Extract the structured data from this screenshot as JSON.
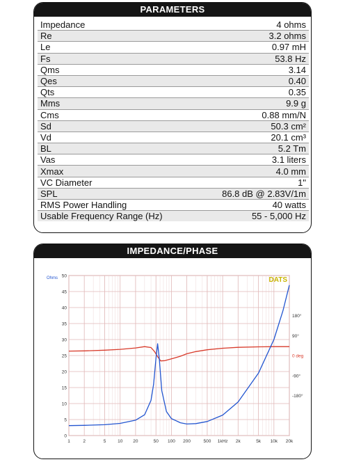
{
  "parameters": {
    "title": "PARAMETERS",
    "rows": [
      {
        "label": "Impedance",
        "value": "4 ohms"
      },
      {
        "label": "Re",
        "value": "3.2 ohms"
      },
      {
        "label": "Le",
        "value": "0.97 mH"
      },
      {
        "label": "Fs",
        "value": "53.8 Hz"
      },
      {
        "label": "Qms",
        "value": "3.14"
      },
      {
        "label": "Qes",
        "value": "0.40"
      },
      {
        "label": "Qts",
        "value": "0.35"
      },
      {
        "label": "Mms",
        "value": "9.9 g"
      },
      {
        "label": "Cms",
        "value": "0.88 mm/N"
      },
      {
        "label": "Sd",
        "value": "50.3 cm²"
      },
      {
        "label": "Vd",
        "value": "20.1 cm³"
      },
      {
        "label": "BL",
        "value": "5.2 Tm"
      },
      {
        "label": "Vas",
        "value": "3.1 liters"
      },
      {
        "label": "Xmax",
        "value": "4.0 mm"
      },
      {
        "label": "VC Diameter",
        "value": "1\""
      },
      {
        "label": "SPL",
        "value": "86.8 dB @ 2.83V/1m"
      },
      {
        "label": "RMS Power Handling",
        "value": "40 watts"
      },
      {
        "label": "Usable Frequency Range (Hz)",
        "value": "55 - 5,000 Hz"
      }
    ]
  },
  "impedance_panel": {
    "title": "IMPEDANCE/PHASE",
    "watermark": "DATS",
    "left_unit": "Ohms",
    "colors": {
      "impedance": "#2255d0",
      "phase": "#d83a2a",
      "grid": "#e0b8b8",
      "watermark": "#c8b400"
    }
  },
  "chart_data": {
    "type": "line",
    "xscale": "log",
    "xlim": [
      1,
      20000
    ],
    "x_tick_labels": [
      "1",
      "2",
      "5",
      "10",
      "20",
      "50",
      "100",
      "200",
      "500",
      "1kHz",
      "2k",
      "5k",
      "10k",
      "20k"
    ],
    "x_tick_values": [
      1,
      2,
      5,
      10,
      20,
      50,
      100,
      200,
      500,
      1000,
      2000,
      5000,
      10000,
      20000
    ],
    "ylim": [
      0,
      50
    ],
    "y_tick_labels": [
      "0",
      "5",
      "10",
      "15",
      "20",
      "25",
      "30",
      "35",
      "40",
      "45",
      "50"
    ],
    "y_tick_values": [
      0,
      5,
      10,
      15,
      20,
      25,
      30,
      35,
      40,
      45,
      50
    ],
    "y2lim": [
      -360,
      360
    ],
    "y2_tick_labels": [
      "180°",
      "90°",
      "0 deg",
      "-90°",
      "-180°"
    ],
    "y2_tick_values": [
      180,
      90,
      0,
      -90,
      -180
    ],
    "series": [
      {
        "axis": "left",
        "x": [
          1,
          2,
          5,
          10,
          20,
          30,
          40,
          45,
          50,
          53.8,
          58,
          65,
          80,
          100,
          150,
          200,
          300,
          500,
          1000,
          2000,
          5000,
          10000,
          15000,
          20000
        ],
        "y": [
          3.1,
          3.2,
          3.4,
          3.8,
          4.8,
          6.5,
          11,
          16,
          24,
          28.7,
          24,
          14,
          7.5,
          5.3,
          4.0,
          3.6,
          3.75,
          4.4,
          6.4,
          10.5,
          19.5,
          30,
          39,
          47
        ]
      },
      {
        "axis": "right",
        "x": [
          1,
          2,
          5,
          10,
          20,
          30,
          40,
          47,
          53.8,
          62,
          75,
          100,
          150,
          200,
          300,
          500,
          1000,
          2000,
          5000,
          10000,
          20000
        ],
        "y": [
          20,
          21,
          24,
          28,
          34,
          40,
          36,
          18,
          -5,
          -24,
          -23,
          -15,
          -3,
          8,
          18,
          26,
          33,
          37,
          39,
          40,
          40
        ]
      }
    ]
  }
}
